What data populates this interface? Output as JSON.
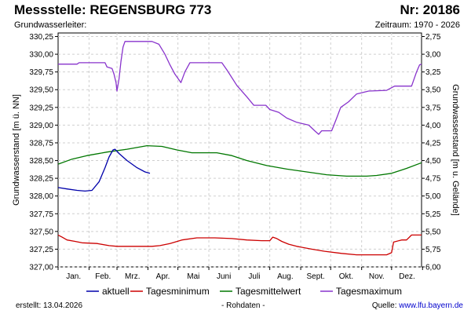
{
  "header": {
    "title": "Messstelle: REGENSBURG 773",
    "number": "Nr: 20186",
    "aquifer_label": "Grundwasserleiter:",
    "period": "Zeitraum: 1970 - 2026"
  },
  "footer": {
    "created": "erstellt:  13.04.2026",
    "rawdata": "- Rohdaten -",
    "source_prefix": "Quelle: ",
    "source_link": "www.lfu.bayern.de"
  },
  "chart_data": {
    "type": "line",
    "x_unit": "day_of_year",
    "xlim": [
      1,
      365
    ],
    "ylabel": "Grundwasserstand [m ü. NN]",
    "ylim": [
      327.0,
      330.3
    ],
    "y_ticks": [
      "327,00",
      "327,25",
      "327,50",
      "327,75",
      "328,00",
      "328,25",
      "328,50",
      "328,75",
      "329,00",
      "329,25",
      "329,50",
      "329,75",
      "330,00",
      "330,25"
    ],
    "y2label": "Grundwasserstand [m u. Gelände]",
    "y2_ticks": [
      "2,75",
      "3,00",
      "3,25",
      "3,50",
      "3,75",
      "4,00",
      "4,25",
      "4,50",
      "4,75",
      "5,00",
      "5,25",
      "5,50",
      "5,75",
      "6,00"
    ],
    "month_labels": [
      "Jan.",
      "Feb.",
      "Mrz.",
      "Apr.",
      "Mai",
      "Juni",
      "Juli",
      "Aug.",
      "Sept.",
      "Okt.",
      "Nov.",
      "Dez."
    ],
    "grid": true,
    "legend_position": "bottom",
    "series": [
      {
        "name": "aktuell",
        "color": "#0000aa",
        "points": [
          [
            1,
            328.12
          ],
          [
            10,
            328.1
          ],
          [
            20,
            328.08
          ],
          [
            28,
            328.07
          ],
          [
            35,
            328.08
          ],
          [
            42,
            328.2
          ],
          [
            48,
            328.4
          ],
          [
            52,
            328.55
          ],
          [
            56,
            328.65
          ],
          [
            58,
            328.66
          ],
          [
            62,
            328.6
          ],
          [
            70,
            328.5
          ],
          [
            80,
            328.4
          ],
          [
            88,
            328.34
          ],
          [
            93,
            328.32
          ]
        ]
      },
      {
        "name": "Tagesminimum",
        "color": "#cc0000",
        "points": [
          [
            1,
            327.45
          ],
          [
            5,
            327.42
          ],
          [
            10,
            327.38
          ],
          [
            18,
            327.36
          ],
          [
            25,
            327.34
          ],
          [
            40,
            327.33
          ],
          [
            52,
            327.3
          ],
          [
            60,
            327.29
          ],
          [
            95,
            327.29
          ],
          [
            103,
            327.3
          ],
          [
            113,
            327.33
          ],
          [
            125,
            327.38
          ],
          [
            140,
            327.41
          ],
          [
            158,
            327.41
          ],
          [
            175,
            327.4
          ],
          [
            190,
            327.38
          ],
          [
            205,
            327.37
          ],
          [
            213,
            327.37
          ],
          [
            216,
            327.42
          ],
          [
            220,
            327.4
          ],
          [
            225,
            327.36
          ],
          [
            232,
            327.32
          ],
          [
            240,
            327.29
          ],
          [
            255,
            327.25
          ],
          [
            268,
            327.22
          ],
          [
            285,
            327.19
          ],
          [
            300,
            327.17
          ],
          [
            315,
            327.17
          ],
          [
            330,
            327.17
          ],
          [
            335,
            327.2
          ],
          [
            337,
            327.35
          ],
          [
            345,
            327.38
          ],
          [
            350,
            327.38
          ],
          [
            355,
            327.45
          ],
          [
            365,
            327.45
          ]
        ]
      },
      {
        "name": "Tagesmittelwert",
        "color": "#007700",
        "points": [
          [
            1,
            328.45
          ],
          [
            15,
            328.52
          ],
          [
            30,
            328.57
          ],
          [
            50,
            328.62
          ],
          [
            70,
            328.66
          ],
          [
            90,
            328.71
          ],
          [
            105,
            328.7
          ],
          [
            120,
            328.65
          ],
          [
            135,
            328.61
          ],
          [
            160,
            328.61
          ],
          [
            175,
            328.57
          ],
          [
            190,
            328.5
          ],
          [
            210,
            328.43
          ],
          [
            230,
            328.38
          ],
          [
            250,
            328.34
          ],
          [
            270,
            328.3
          ],
          [
            290,
            328.28
          ],
          [
            310,
            328.28
          ],
          [
            320,
            328.29
          ],
          [
            335,
            328.32
          ],
          [
            350,
            328.39
          ],
          [
            365,
            328.47
          ]
        ]
      },
      {
        "name": "Tagesmaximum",
        "color": "#8833cc",
        "points": [
          [
            1,
            329.86
          ],
          [
            20,
            329.86
          ],
          [
            22,
            329.88
          ],
          [
            48,
            329.88
          ],
          [
            50,
            329.82
          ],
          [
            55,
            329.8
          ],
          [
            57,
            329.72
          ],
          [
            59,
            329.6
          ],
          [
            60,
            329.48
          ],
          [
            62,
            329.65
          ],
          [
            64,
            329.9
          ],
          [
            66,
            330.1
          ],
          [
            68,
            330.18
          ],
          [
            95,
            330.18
          ],
          [
            102,
            330.14
          ],
          [
            108,
            330.0
          ],
          [
            113,
            329.85
          ],
          [
            118,
            329.72
          ],
          [
            124,
            329.6
          ],
          [
            128,
            329.75
          ],
          [
            133,
            329.88
          ],
          [
            165,
            329.88
          ],
          [
            170,
            329.78
          ],
          [
            180,
            329.56
          ],
          [
            190,
            329.4
          ],
          [
            197,
            329.28
          ],
          [
            209,
            329.28
          ],
          [
            213,
            329.22
          ],
          [
            222,
            329.18
          ],
          [
            230,
            329.1
          ],
          [
            240,
            329.04
          ],
          [
            252,
            329.0
          ],
          [
            258,
            328.92
          ],
          [
            262,
            328.87
          ],
          [
            265,
            328.92
          ],
          [
            275,
            328.92
          ],
          [
            280,
            329.1
          ],
          [
            284,
            329.25
          ],
          [
            292,
            329.33
          ],
          [
            300,
            329.44
          ],
          [
            312,
            329.48
          ],
          [
            330,
            329.49
          ],
          [
            338,
            329.55
          ],
          [
            355,
            329.55
          ],
          [
            360,
            329.75
          ],
          [
            363,
            329.85
          ],
          [
            365,
            329.86
          ]
        ]
      }
    ]
  }
}
